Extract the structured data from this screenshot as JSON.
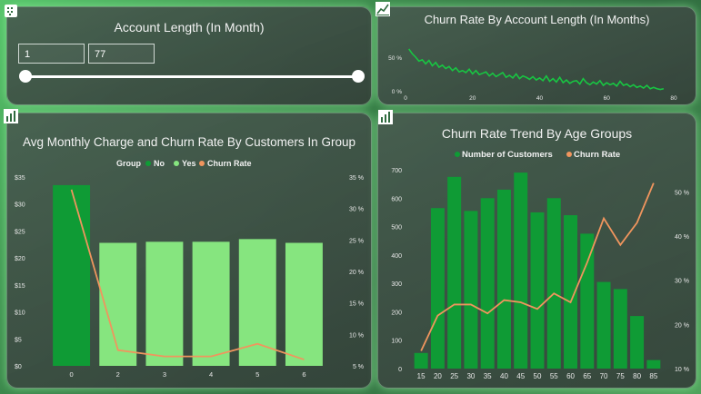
{
  "slicer": {
    "title": "Account Length (In Month)",
    "min_value": "1",
    "max_value": "77"
  },
  "card_small": {
    "title": "Churn Rate By Account Length (In Months)"
  },
  "card_left": {
    "title": "Avg Monthly Charge and Churn Rate By Customers In Group"
  },
  "card_right": {
    "title": "Churn Rate Trend By Age Groups"
  },
  "colors": {
    "dark_green": "#0f9b35",
    "light_green": "#86e57f",
    "bright_green": "#18c542",
    "orange": "#f0955e"
  },
  "chart_data": [
    {
      "type": "line",
      "title": "Churn Rate By Account Length (In Months)",
      "x_ticks": [
        "0",
        "20",
        "40",
        "60",
        "80"
      ],
      "y_ticks": [
        "0 %",
        "50 %"
      ],
      "xlim": [
        0,
        80
      ],
      "ylim": [
        0,
        70
      ],
      "x": [
        1,
        2,
        3,
        4,
        5,
        6,
        7,
        8,
        9,
        10,
        11,
        12,
        13,
        14,
        15,
        16,
        17,
        18,
        19,
        20,
        21,
        22,
        23,
        24,
        25,
        26,
        27,
        28,
        29,
        30,
        31,
        32,
        33,
        34,
        35,
        36,
        37,
        38,
        39,
        40,
        41,
        42,
        43,
        44,
        45,
        46,
        47,
        48,
        49,
        50,
        51,
        52,
        53,
        54,
        55,
        56,
        57,
        58,
        59,
        60,
        61,
        62,
        63,
        64,
        65,
        66,
        67,
        68,
        69,
        70,
        71,
        72,
        73,
        74,
        75,
        76,
        77
      ],
      "y": [
        62,
        55,
        50,
        44,
        46,
        40,
        45,
        37,
        42,
        35,
        38,
        33,
        36,
        30,
        34,
        28,
        30,
        27,
        32,
        25,
        30,
        24,
        26,
        28,
        22,
        26,
        21,
        24,
        27,
        20,
        23,
        19,
        25,
        18,
        22,
        20,
        17,
        21,
        16,
        19,
        15,
        22,
        14,
        18,
        13,
        20,
        12,
        16,
        11,
        14,
        15,
        10,
        18,
        12,
        9,
        13,
        10,
        15,
        8,
        12,
        9,
        11,
        7,
        14,
        8,
        10,
        6,
        9,
        5,
        7,
        4,
        8,
        3,
        5,
        3,
        2,
        3
      ],
      "series": [
        {
          "values": "y",
          "color": "#18c542"
        }
      ]
    },
    {
      "type": "bar",
      "title": "Avg Monthly Charge and Churn Rate By Customers In Group",
      "legend_title": "Group",
      "legend": [
        "No",
        "Yes",
        "Churn Rate"
      ],
      "categories": [
        "0",
        "2",
        "3",
        "4",
        "5",
        "6"
      ],
      "bar_colors": [
        "#0f9b35",
        "#86e57f",
        "#86e57f",
        "#86e57f",
        "#86e57f",
        "#86e57f"
      ],
      "values": [
        33.5,
        22.8,
        23.0,
        23.0,
        23.5,
        22.8
      ],
      "ylim": [
        0,
        35
      ],
      "y_ticks": [
        "$0",
        "$5",
        "$10",
        "$15",
        "$20",
        "$25",
        "$30",
        "$35"
      ],
      "churn_rate": [
        33,
        7.5,
        6.5,
        6.5,
        8.5,
        6
      ],
      "y2lim": [
        5,
        35
      ],
      "y2_ticks": [
        "5 %",
        "10 %",
        "15 %",
        "20 %",
        "25 %",
        "30 %",
        "35 %"
      ]
    },
    {
      "type": "bar",
      "title": "Churn Rate Trend By Age Groups",
      "legend": [
        "Number of Customers",
        "Churn Rate"
      ],
      "categories": [
        "15",
        "20",
        "25",
        "30",
        "35",
        "40",
        "45",
        "50",
        "55",
        "60",
        "65",
        "70",
        "75",
        "80",
        "85"
      ],
      "values": [
        55,
        565,
        675,
        555,
        600,
        630,
        690,
        550,
        600,
        540,
        475,
        305,
        280,
        185,
        30
      ],
      "ylim": [
        0,
        700
      ],
      "y_ticks": [
        "0",
        "100",
        "200",
        "300",
        "400",
        "500",
        "600",
        "700"
      ],
      "churn_rate": [
        14,
        22,
        24.5,
        24.5,
        22.5,
        25.5,
        25,
        23.5,
        27,
        25,
        34,
        44,
        38,
        43,
        52
      ],
      "y2lim": [
        10,
        55
      ],
      "y2_ticks": [
        "10 %",
        "20 %",
        "30 %",
        "40 %",
        "50 %"
      ]
    }
  ]
}
